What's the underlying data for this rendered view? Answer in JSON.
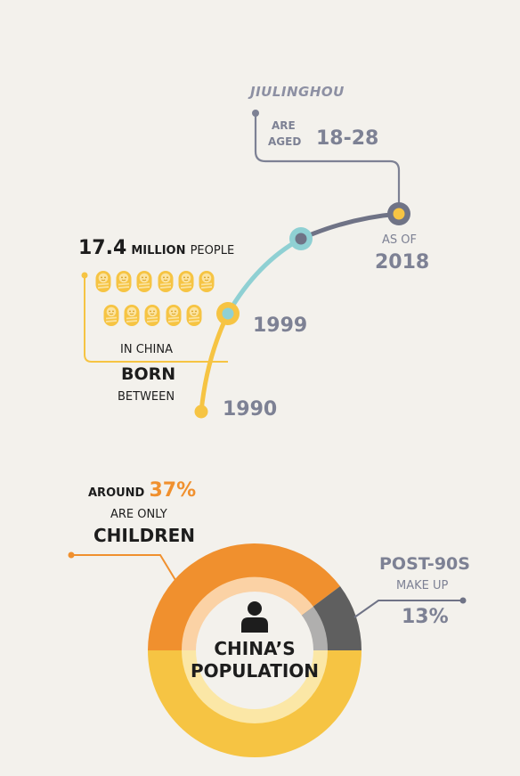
{
  "timeline": {
    "label_name": "JIULINGHOU",
    "aged_word_1": "ARE",
    "aged_word_2": "AGED",
    "age_range": "18-28",
    "as_of_label": "AS OF",
    "as_of_year": "2018",
    "count_value": "17.4",
    "count_unit": "MILLION",
    "count_suffix": "PEOPLE",
    "in_china": "IN CHINA",
    "born": "BORN",
    "between": "BETWEEN",
    "year_end": "1999",
    "year_start": "1990",
    "baby_icon": "baby-icon",
    "baby_icon_count": 11
  },
  "donut": {
    "around_label": "AROUND",
    "percent_only": "37%",
    "are_only": "ARE ONLY",
    "children": "CHILDREN",
    "post90s": "POST-90S",
    "make_up": "MAKE UP",
    "percent_post90s": "13%",
    "center_line1": "CHINA’S",
    "center_line2": "POPULATION",
    "center_icon": "person-icon"
  },
  "colors": {
    "orange": "#f0902e",
    "yellow": "#f6c443",
    "teal": "#8fd0d3",
    "slate": "#6f7386",
    "dark_gray": "#5f5f5f",
    "text_gray": "#7d8194"
  }
}
